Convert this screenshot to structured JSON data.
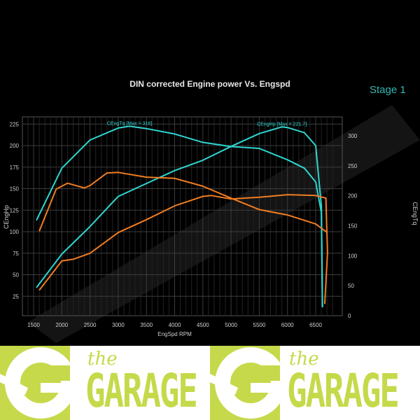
{
  "chart_data": {
    "type": "line",
    "title": "DIN corrected Engine power Vs. Engspd",
    "stage_label": "Stage 1",
    "xlabel": "EngSpd RPM",
    "ylabel_left": "CEngHp",
    "ylabel_right": "CEngTq",
    "xlim": [
      1300,
      6900
    ],
    "ylim_left": [
      0,
      235
    ],
    "ylim_right": [
      0,
      330
    ],
    "xticks": [
      1500,
      2000,
      2500,
      3000,
      3500,
      4000,
      4500,
      5000,
      5500,
      6000,
      6500
    ],
    "yticks_left": [
      25,
      50,
      75,
      100,
      125,
      150,
      175,
      200,
      225
    ],
    "yticks_right": [
      0,
      50,
      100,
      150,
      200,
      250,
      300
    ],
    "grid": true,
    "annotations": [
      {
        "text": "CEngTq [Max = 316]",
        "x": 3200,
        "axis": "right",
        "y": 316
      },
      {
        "text": "CEngHp [Max = 221.7]",
        "x": 5900,
        "axis": "left",
        "y": 221.7
      }
    ],
    "colors": {
      "stage1": "#2fd6d0",
      "stock": "#f07d22",
      "background": "#000000",
      "grid": "#3a3a3a",
      "text": "#cfcfcf"
    },
    "series": [
      {
        "key": "stage1_hp",
        "axis": "left",
        "color": "#2fd6d0",
        "x": [
          1550,
          2000,
          2500,
          3000,
          3500,
          4000,
          4500,
          5000,
          5500,
          5900,
          6000,
          6300,
          6500,
          6600,
          6620
        ],
        "y": [
          35,
          74,
          106,
          141,
          156,
          171,
          183,
          199,
          214,
          221.7,
          221,
          215,
          200,
          130,
          13
        ]
      },
      {
        "key": "stage1_tq",
        "axis": "right",
        "color": "#2fd6d0",
        "x": [
          1550,
          2000,
          2500,
          3000,
          3200,
          3500,
          4000,
          4500,
          5000,
          5500,
          6000,
          6300,
          6500,
          6600,
          6620
        ],
        "y": [
          159,
          246,
          293,
          313,
          316,
          312,
          303,
          289,
          282,
          279,
          260,
          246,
          223,
          172,
          14
        ]
      },
      {
        "key": "stock_hp",
        "axis": "left",
        "color": "#f07d22",
        "x": [
          1600,
          2000,
          2200,
          2500,
          3000,
          3500,
          4000,
          4500,
          4650,
          5000,
          5500,
          6000,
          6500,
          6680,
          6710,
          6660
        ],
        "y": [
          32,
          66,
          68,
          75,
          99,
          114,
          130,
          141,
          142,
          138,
          140,
          143,
          142,
          139,
          76,
          16
        ]
      },
      {
        "key": "stock_tq",
        "axis": "right",
        "color": "#f07d22",
        "x": [
          1600,
          1900,
          2100,
          2400,
          2500,
          2800,
          3000,
          3500,
          4000,
          4500,
          5000,
          5500,
          6000,
          6500,
          6700
        ],
        "y": [
          141,
          211,
          221,
          213,
          217,
          238,
          239,
          231,
          229,
          216,
          196,
          177,
          168,
          153,
          139
        ]
      }
    ]
  },
  "logo": {
    "small": "the",
    "big": "GARAGE",
    "color": "#c6d94a"
  }
}
